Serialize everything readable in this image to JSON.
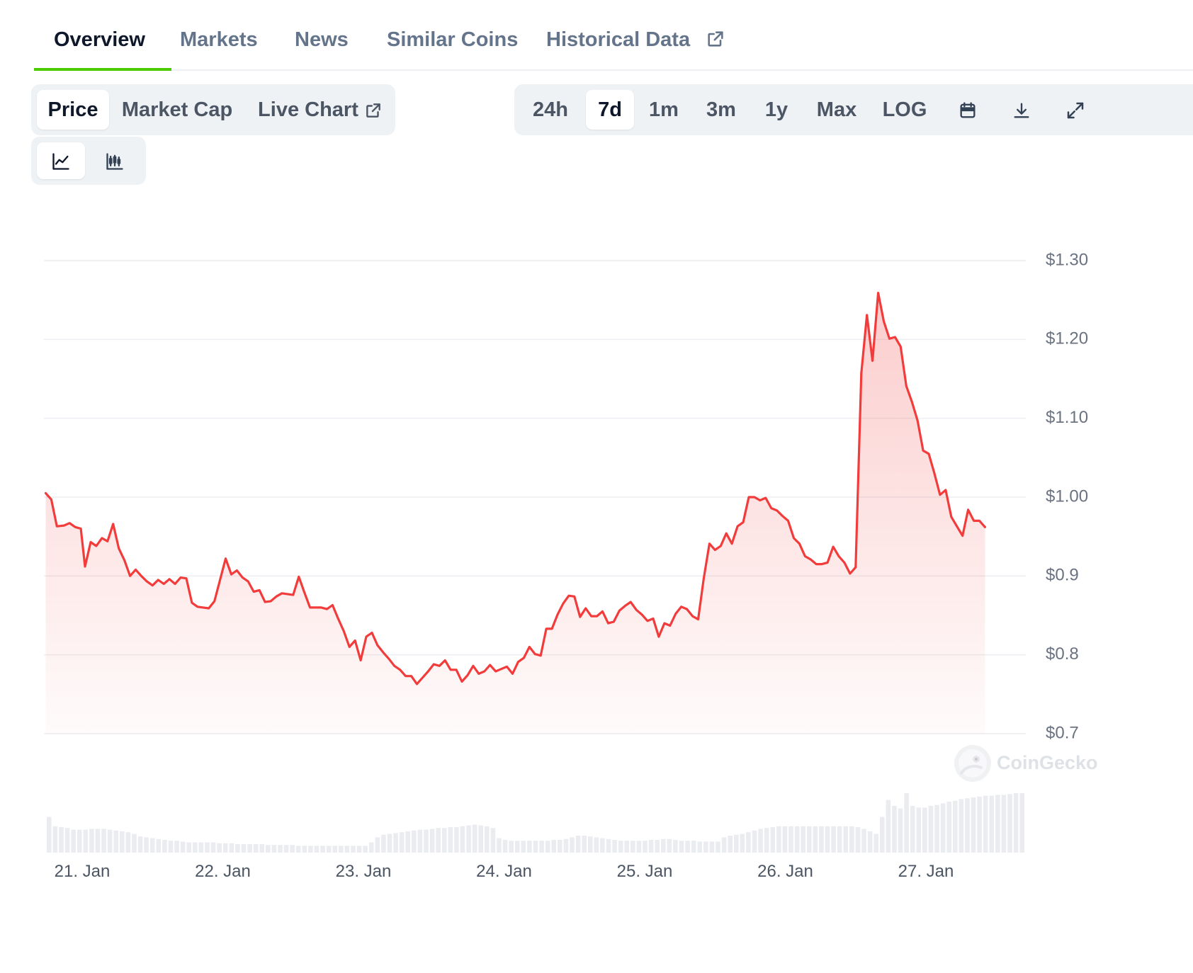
{
  "tabs": [
    {
      "label": "Overview",
      "active": true
    },
    {
      "label": "Markets",
      "active": false
    },
    {
      "label": "News",
      "active": false
    },
    {
      "label": "Similar Coins",
      "active": false
    },
    {
      "label": "Historical Data",
      "active": false,
      "icon": "external-link-icon"
    }
  ],
  "chart_mode": {
    "items": [
      {
        "label": "Price",
        "active": true
      },
      {
        "label": "Market Cap",
        "active": false
      },
      {
        "label": "Live Chart",
        "active": false,
        "icon": "external-link-icon"
      }
    ]
  },
  "chart_style": {
    "items": [
      {
        "icon": "line-chart-icon",
        "active": true
      },
      {
        "icon": "candlestick-chart-icon",
        "active": false
      }
    ]
  },
  "time_range": {
    "items": [
      {
        "label": "24h",
        "active": false
      },
      {
        "label": "7d",
        "active": true
      },
      {
        "label": "1m",
        "active": false
      },
      {
        "label": "3m",
        "active": false
      },
      {
        "label": "1y",
        "active": false
      },
      {
        "label": "Max",
        "active": false
      },
      {
        "label": "LOG",
        "active": false
      }
    ],
    "tools": [
      "calendar-icon",
      "download-icon",
      "fullscreen-icon"
    ]
  },
  "watermark": "CoinGecko",
  "colors": {
    "line": "#f23c3c",
    "accent": "#4bcc00",
    "volume": "#eaecef"
  },
  "chart_data": {
    "type": "area",
    "title": "",
    "xlabel": "",
    "ylabel": "",
    "ylim": [
      0.7,
      1.3
    ],
    "y_ticks": [
      1.3,
      1.2,
      1.1,
      1.0,
      0.9,
      0.8,
      0.7
    ],
    "y_tick_labels": [
      "$1.30",
      "$1.20",
      "$1.10",
      "$1.00",
      "$0.9",
      "$0.8",
      "$0.7"
    ],
    "x_tick_labels": [
      "21. Jan",
      "22. Jan",
      "23. Jan",
      "24. Jan",
      "25. Jan",
      "26. Jan",
      "27. Jan"
    ],
    "x_range_days": [
      -0.31,
      6.77
    ],
    "grid": true,
    "series": [
      {
        "values": [
          [
            -0.31,
            1.005
          ],
          [
            -0.27,
            0.997
          ],
          [
            -0.23,
            0.963
          ],
          [
            -0.18,
            0.964
          ],
          [
            -0.14,
            0.967
          ],
          [
            -0.1,
            0.962
          ],
          [
            -0.06,
            0.96
          ],
          [
            -0.03,
            0.912
          ],
          [
            0.01,
            0.943
          ],
          [
            0.05,
            0.938
          ],
          [
            0.09,
            0.948
          ],
          [
            0.13,
            0.944
          ],
          [
            0.17,
            0.966
          ],
          [
            0.21,
            0.935
          ],
          [
            0.25,
            0.92
          ],
          [
            0.29,
            0.9
          ],
          [
            0.33,
            0.908
          ],
          [
            0.37,
            0.9
          ],
          [
            0.41,
            0.893
          ],
          [
            0.45,
            0.888
          ],
          [
            0.49,
            0.895
          ],
          [
            0.53,
            0.89
          ],
          [
            0.57,
            0.896
          ],
          [
            0.61,
            0.89
          ],
          [
            0.65,
            0.898
          ],
          [
            0.69,
            0.897
          ],
          [
            0.73,
            0.866
          ],
          [
            0.77,
            0.861
          ],
          [
            0.81,
            0.86
          ],
          [
            0.85,
            0.859
          ],
          [
            0.89,
            0.868
          ],
          [
            0.93,
            0.895
          ],
          [
            0.97,
            0.922
          ],
          [
            1.01,
            0.902
          ],
          [
            1.05,
            0.907
          ],
          [
            1.09,
            0.898
          ],
          [
            1.13,
            0.893
          ],
          [
            1.17,
            0.88
          ],
          [
            1.21,
            0.882
          ],
          [
            1.25,
            0.867
          ],
          [
            1.29,
            0.868
          ],
          [
            1.33,
            0.874
          ],
          [
            1.37,
            0.878
          ],
          [
            1.41,
            0.877
          ],
          [
            1.45,
            0.876
          ],
          [
            1.49,
            0.899
          ],
          [
            1.53,
            0.879
          ],
          [
            1.57,
            0.86
          ],
          [
            1.61,
            0.86
          ],
          [
            1.65,
            0.86
          ],
          [
            1.69,
            0.858
          ],
          [
            1.73,
            0.863
          ],
          [
            1.77,
            0.846
          ],
          [
            1.81,
            0.83
          ],
          [
            1.85,
            0.81
          ],
          [
            1.89,
            0.818
          ],
          [
            1.93,
            0.793
          ],
          [
            1.97,
            0.823
          ],
          [
            2.01,
            0.828
          ],
          [
            2.05,
            0.812
          ],
          [
            2.09,
            0.803
          ],
          [
            2.13,
            0.795
          ],
          [
            2.17,
            0.786
          ],
          [
            2.21,
            0.781
          ],
          [
            2.25,
            0.773
          ],
          [
            2.29,
            0.773
          ],
          [
            2.33,
            0.763
          ],
          [
            2.37,
            0.771
          ],
          [
            2.41,
            0.779
          ],
          [
            2.45,
            0.788
          ],
          [
            2.49,
            0.786
          ],
          [
            2.53,
            0.793
          ],
          [
            2.57,
            0.781
          ],
          [
            2.61,
            0.781
          ],
          [
            2.65,
            0.766
          ],
          [
            2.69,
            0.774
          ],
          [
            2.73,
            0.786
          ],
          [
            2.77,
            0.776
          ],
          [
            2.81,
            0.779
          ],
          [
            2.85,
            0.787
          ],
          [
            2.89,
            0.779
          ],
          [
            2.93,
            0.782
          ],
          [
            2.97,
            0.785
          ],
          [
            3.01,
            0.776
          ],
          [
            3.05,
            0.791
          ],
          [
            3.09,
            0.796
          ],
          [
            3.13,
            0.81
          ],
          [
            3.17,
            0.801
          ],
          [
            3.21,
            0.799
          ],
          [
            3.25,
            0.833
          ],
          [
            3.29,
            0.833
          ],
          [
            3.33,
            0.851
          ],
          [
            3.37,
            0.865
          ],
          [
            3.41,
            0.875
          ],
          [
            3.45,
            0.874
          ],
          [
            3.49,
            0.848
          ],
          [
            3.53,
            0.859
          ],
          [
            3.57,
            0.849
          ],
          [
            3.61,
            0.849
          ],
          [
            3.65,
            0.855
          ],
          [
            3.69,
            0.84
          ],
          [
            3.73,
            0.842
          ],
          [
            3.77,
            0.856
          ],
          [
            3.81,
            0.862
          ],
          [
            3.85,
            0.867
          ],
          [
            3.89,
            0.857
          ],
          [
            3.93,
            0.851
          ],
          [
            3.97,
            0.843
          ],
          [
            4.01,
            0.846
          ],
          [
            4.05,
            0.823
          ],
          [
            4.09,
            0.84
          ],
          [
            4.13,
            0.837
          ],
          [
            4.17,
            0.852
          ],
          [
            4.21,
            0.861
          ],
          [
            4.25,
            0.858
          ],
          [
            4.29,
            0.849
          ],
          [
            4.33,
            0.845
          ],
          [
            4.37,
            0.897
          ],
          [
            4.41,
            0.941
          ],
          [
            4.45,
            0.933
          ],
          [
            4.49,
            0.938
          ],
          [
            4.53,
            0.954
          ],
          [
            4.57,
            0.941
          ],
          [
            4.61,
            0.963
          ],
          [
            4.65,
            0.968
          ],
          [
            4.69,
            1.0
          ],
          [
            4.73,
            1.0
          ],
          [
            4.77,
            0.996
          ],
          [
            4.81,
            0.999
          ],
          [
            4.85,
            0.986
          ],
          [
            4.89,
            0.983
          ],
          [
            4.93,
            0.976
          ],
          [
            4.97,
            0.97
          ],
          [
            5.01,
            0.948
          ],
          [
            5.05,
            0.941
          ],
          [
            5.09,
            0.925
          ],
          [
            5.13,
            0.921
          ],
          [
            5.17,
            0.915
          ],
          [
            5.21,
            0.915
          ],
          [
            5.25,
            0.917
          ],
          [
            5.29,
            0.937
          ],
          [
            5.33,
            0.925
          ],
          [
            5.37,
            0.917
          ],
          [
            5.41,
            0.903
          ],
          [
            5.45,
            0.911
          ],
          [
            5.49,
            1.157
          ],
          [
            5.53,
            1.231
          ],
          [
            5.57,
            1.173
          ],
          [
            5.61,
            1.259
          ],
          [
            5.65,
            1.223
          ],
          [
            5.69,
            1.201
          ],
          [
            5.73,
            1.203
          ],
          [
            5.77,
            1.191
          ],
          [
            5.81,
            1.141
          ],
          [
            5.85,
            1.121
          ],
          [
            5.89,
            1.097
          ],
          [
            5.93,
            1.059
          ],
          [
            5.97,
            1.055
          ],
          [
            6.01,
            1.03
          ],
          [
            6.05,
            1.003
          ],
          [
            6.09,
            1.009
          ],
          [
            6.13,
            0.975
          ],
          [
            6.17,
            0.963
          ],
          [
            6.21,
            0.951
          ],
          [
            6.25,
            0.984
          ],
          [
            6.29,
            0.97
          ],
          [
            6.33,
            0.97
          ],
          [
            6.37,
            0.962
          ]
        ]
      }
    ],
    "volume": {
      "values": [
        0.42,
        0.31,
        0.3,
        0.29,
        0.27,
        0.27,
        0.27,
        0.28,
        0.28,
        0.28,
        0.27,
        0.26,
        0.25,
        0.24,
        0.22,
        0.19,
        0.18,
        0.17,
        0.16,
        0.15,
        0.14,
        0.14,
        0.13,
        0.12,
        0.12,
        0.12,
        0.12,
        0.12,
        0.11,
        0.11,
        0.11,
        0.1,
        0.1,
        0.1,
        0.1,
        0.1,
        0.09,
        0.09,
        0.09,
        0.09,
        0.09,
        0.08,
        0.08,
        0.08,
        0.08,
        0.08,
        0.08,
        0.08,
        0.08,
        0.08,
        0.08,
        0.08,
        0.08,
        0.12,
        0.18,
        0.21,
        0.22,
        0.23,
        0.24,
        0.25,
        0.26,
        0.27,
        0.27,
        0.28,
        0.29,
        0.29,
        0.3,
        0.3,
        0.31,
        0.32,
        0.33,
        0.32,
        0.31,
        0.29,
        0.17,
        0.15,
        0.14,
        0.14,
        0.14,
        0.14,
        0.14,
        0.14,
        0.14,
        0.15,
        0.15,
        0.16,
        0.18,
        0.2,
        0.2,
        0.19,
        0.18,
        0.17,
        0.16,
        0.15,
        0.14,
        0.14,
        0.14,
        0.14,
        0.14,
        0.15,
        0.15,
        0.16,
        0.16,
        0.15,
        0.14,
        0.14,
        0.14,
        0.13,
        0.13,
        0.13,
        0.13,
        0.18,
        0.2,
        0.21,
        0.22,
        0.24,
        0.26,
        0.28,
        0.29,
        0.3,
        0.31,
        0.31,
        0.31,
        0.31,
        0.31,
        0.31,
        0.31,
        0.31,
        0.31,
        0.31,
        0.31,
        0.31,
        0.31,
        0.3,
        0.28,
        0.25,
        0.22,
        0.42,
        0.62,
        0.55,
        0.52,
        0.7,
        0.55,
        0.53,
        0.53,
        0.55,
        0.56,
        0.58,
        0.6,
        0.61,
        0.63,
        0.64,
        0.65,
        0.66,
        0.67,
        0.67,
        0.68,
        0.68,
        0.69,
        0.7,
        0.7
      ]
    }
  }
}
